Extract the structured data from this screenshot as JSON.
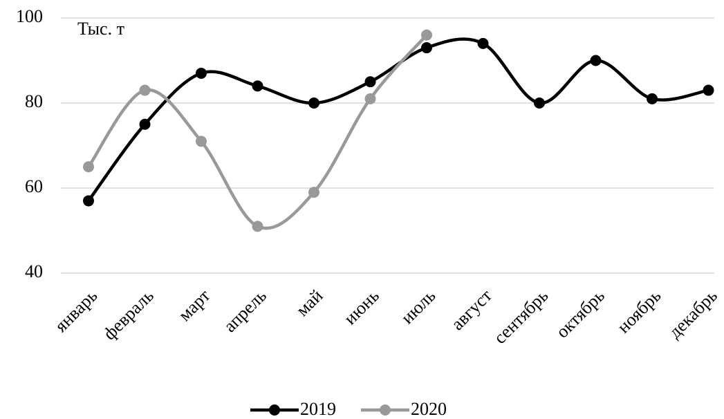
{
  "chart_data": {
    "type": "line",
    "annotation": "Тыс. т",
    "categories": [
      "январь",
      "февраль",
      "март",
      "апрель",
      "май",
      "июнь",
      "июль",
      "август",
      "сентябрь",
      "октябрь",
      "ноябрь",
      "декабрь"
    ],
    "series": [
      {
        "name": "2019",
        "color": "#000000",
        "values": [
          57,
          75,
          87,
          84,
          80,
          85,
          93,
          94,
          80,
          90,
          81,
          83
        ]
      },
      {
        "name": "2020",
        "color": "#999999",
        "values": [
          65,
          83,
          71,
          51,
          59,
          81,
          96,
          null,
          null,
          null,
          null,
          null
        ]
      }
    ],
    "ylim": [
      40,
      100
    ],
    "yticks": [
      40,
      60,
      80,
      100
    ],
    "grid": true,
    "smooth": true
  }
}
